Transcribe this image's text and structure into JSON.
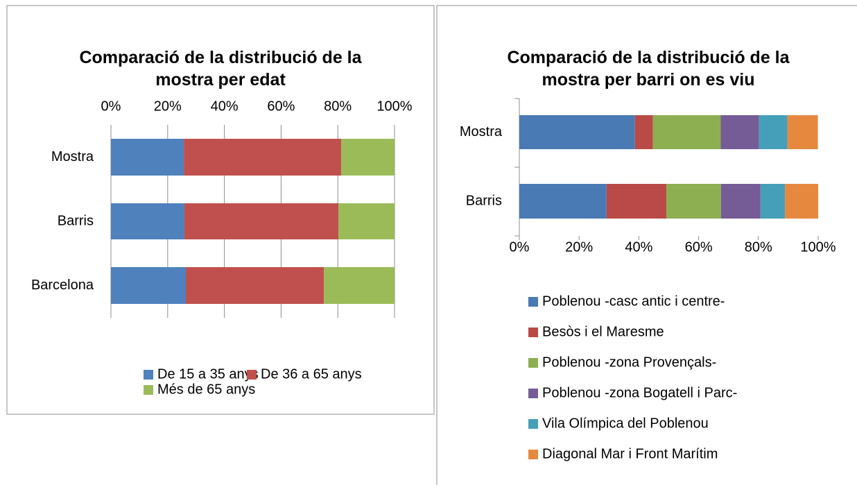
{
  "chart_data": [
    {
      "type": "bar",
      "orientation": "horizontal",
      "stacked": true,
      "title": "Comparació de la distribució de la mostra per edat",
      "categories": [
        "Mostra",
        "Barris",
        "Barcelona"
      ],
      "series": [
        {
          "name": "De 15 a 35 anys",
          "color": "#4f81bd",
          "values": [
            25.7,
            25.9,
            26.4
          ]
        },
        {
          "name": "De 36  a 65 anys",
          "color": "#c0504d",
          "values": [
            55.5,
            54.3,
            48.7
          ]
        },
        {
          "name": "Més de 65 anys",
          "color": "#9bbb59",
          "values": [
            18.8,
            19.8,
            24.9
          ]
        }
      ],
      "xlim": [
        0,
        100
      ],
      "xticks": [
        {
          "value": 0,
          "label": "0%"
        },
        {
          "value": 20,
          "label": "20%"
        },
        {
          "value": 40,
          "label": "40%"
        },
        {
          "value": 60,
          "label": "60%"
        },
        {
          "value": 80,
          "label": "80%"
        },
        {
          "value": 100,
          "label": "100%"
        }
      ],
      "x_axis_position": "top",
      "grid": true,
      "legend": "bottom"
    },
    {
      "type": "bar",
      "orientation": "horizontal",
      "stacked": true,
      "title": "Comparació de la distribució de la mostra per barri on es viu",
      "categories": [
        "Mostra",
        "Barris"
      ],
      "series": [
        {
          "name": "Poblenou -casc antic i centre-",
          "color": "#4a7ab4",
          "values": [
            38.7,
            29.2
          ]
        },
        {
          "name": "Besòs i el Maresme",
          "color": "#b94a47",
          "values": [
            6.0,
            20.0
          ]
        },
        {
          "name": "Poblenou -zona Provençals-",
          "color": "#8eae52",
          "values": [
            22.7,
            18.3
          ]
        },
        {
          "name": "Poblenou -zona Bogatell i Parc-",
          "color": "#765c97",
          "values": [
            12.8,
            13.2
          ]
        },
        {
          "name": "Vila Olímpica del Poblenou",
          "color": "#469fb8",
          "values": [
            9.5,
            8.2
          ]
        },
        {
          "name": "Diagonal Mar i Front Marítim",
          "color": "#e6893f",
          "values": [
            10.2,
            11.1
          ]
        }
      ],
      "xlim": [
        0,
        100
      ],
      "xticks": [
        {
          "value": 0,
          "label": "0%"
        },
        {
          "value": 20,
          "label": "20%"
        },
        {
          "value": 40,
          "label": "40%"
        },
        {
          "value": 60,
          "label": "60%"
        },
        {
          "value": 80,
          "label": "80%"
        },
        {
          "value": 100,
          "label": "100%"
        }
      ],
      "x_axis_position": "bottom",
      "grid": false,
      "legend": "bottom"
    }
  ]
}
